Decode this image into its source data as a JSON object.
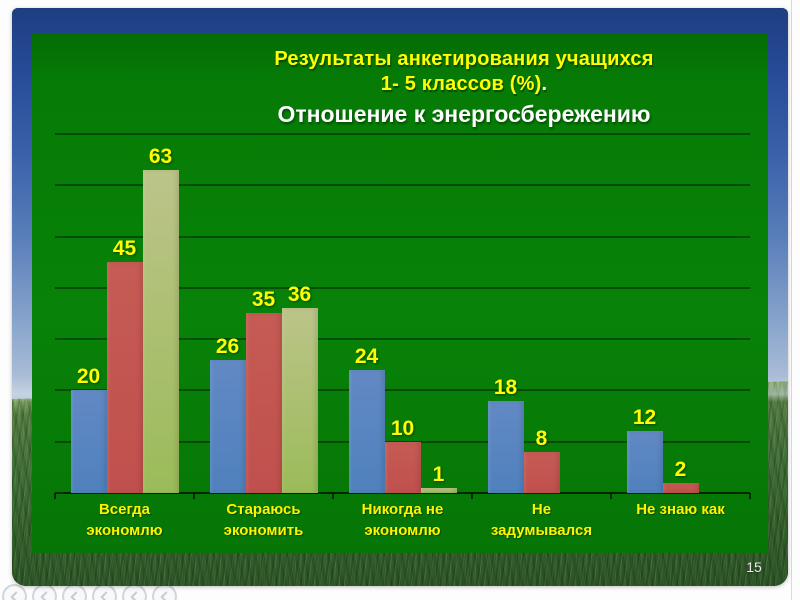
{
  "page": {
    "slide_number": "15"
  },
  "title": {
    "line1": "Результаты анкетирования учащихся",
    "line2": "1- 5 классов (%)",
    "line2_period": ".",
    "line3": "Отношение к энергосбережению"
  },
  "chart_data": {
    "type": "bar",
    "title": "Результаты анкетирования учащихся 1- 5 классов (%). Отношение к энергосбережению",
    "categories": [
      "Всегда экономлю",
      "Стараюсь экономить",
      "Никогда не экономлю",
      "Не задумывался",
      "Не знаю как"
    ],
    "category_lines": [
      [
        "Всегда",
        "экономлю"
      ],
      [
        "Стараюсь",
        "экономить"
      ],
      [
        "Никогда не",
        "экономлю"
      ],
      [
        "Не",
        "задумывался"
      ],
      [
        "Не знаю как"
      ]
    ],
    "series": [
      {
        "name": "blue",
        "color": "#4f81bd",
        "color_top": "#6289c4",
        "values": [
          20,
          26,
          24,
          18,
          12
        ]
      },
      {
        "name": "red",
        "color": "#c0504d",
        "color_top": "#c65b54",
        "values": [
          45,
          35,
          10,
          8,
          2
        ]
      },
      {
        "name": "olive",
        "color": "#9bbb59",
        "color_top": "#bcc489",
        "values": [
          63,
          36,
          1,
          0,
          0
        ]
      }
    ],
    "xlabel": "",
    "ylabel": "",
    "ylim": [
      0,
      70
    ],
    "gridline_step": 10,
    "grid": true,
    "legend": "none",
    "data_labels": true,
    "data_label_color": "#ffff00"
  },
  "colors": {
    "plot_background": "#077d07",
    "title_yellow": "#ffff00",
    "title_white": "#ffffff",
    "category_label": "#fdf400"
  }
}
